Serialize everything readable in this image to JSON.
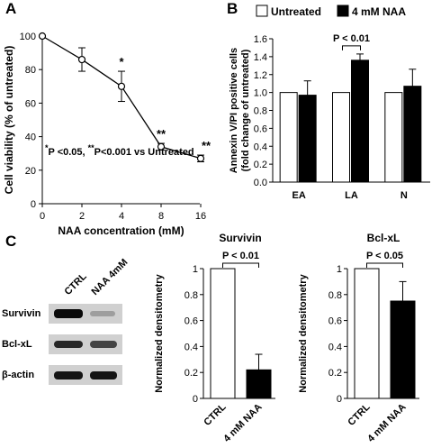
{
  "panels": {
    "a": "A",
    "b": "B",
    "c": "C"
  },
  "chart_data": [
    {
      "id": "A",
      "type": "line",
      "x": [
        0,
        2,
        4,
        8,
        16
      ],
      "y": [
        100,
        86,
        70,
        34,
        27
      ],
      "error": [
        0,
        7,
        9,
        2,
        2
      ],
      "xlabel": "NAA concentration (mM)",
      "ylabel": "Cell viability (% of untreated)",
      "xlim": [
        0,
        16
      ],
      "ylim": [
        0,
        100
      ],
      "xticks": [
        "0",
        "2",
        "4",
        "8",
        "16"
      ],
      "yticks": [
        "0",
        "20",
        "40",
        "60",
        "80",
        "100"
      ],
      "annotations": [
        "",
        "",
        "*",
        "**",
        "**"
      ],
      "footnote_star1": "*",
      "footnote_text1": "P <0.05,",
      "footnote_star2": "**",
      "footnote_text2": "P<0.001 vs Untreated"
    },
    {
      "id": "B",
      "type": "bar",
      "categories": [
        "EA",
        "LA",
        "N"
      ],
      "series": [
        {
          "name": "Untreated",
          "values": [
            1.0,
            1.0,
            1.0
          ],
          "error": [
            0,
            0,
            0
          ],
          "color": "#ffffff"
        },
        {
          "name": "4 mM NAA",
          "values": [
            0.97,
            1.36,
            1.07
          ],
          "error": [
            0.16,
            0.07,
            0.19
          ],
          "color": "#000000"
        }
      ],
      "ylabel_line1": "Annexin V/PI positive cells",
      "ylabel_line2": "(fold change of untreated)",
      "ylim": [
        0,
        1.6
      ],
      "yticks": [
        "0.0",
        "0.2",
        "0.4",
        "0.6",
        "0.8",
        "1.0",
        "1.2",
        "1.4",
        "1.6"
      ],
      "annotation": "P < 0.01"
    },
    {
      "id": "C-Survivin",
      "type": "bar",
      "title": "Survivin",
      "categories": [
        "CTRL",
        "4 mM NAA"
      ],
      "values": [
        1.0,
        0.22
      ],
      "error": [
        0,
        0.12
      ],
      "colors": [
        "#ffffff",
        "#000000"
      ],
      "ylabel": "Normalized densitometry",
      "ylim": [
        0,
        1
      ],
      "yticks": [
        "0",
        "0.2",
        "0.4",
        "0.6",
        "0.8",
        "1"
      ],
      "annotation": "P < 0.01"
    },
    {
      "id": "C-BclxL",
      "type": "bar",
      "title": "Bcl-xL",
      "categories": [
        "CTRL",
        "4 mM NAA"
      ],
      "values": [
        1.0,
        0.75
      ],
      "error": [
        0,
        0.15
      ],
      "colors": [
        "#ffffff",
        "#000000"
      ],
      "ylabel": "Normalized densitometry",
      "ylim": [
        0,
        1
      ],
      "yticks": [
        "0",
        "0.2",
        "0.4",
        "0.6",
        "0.8",
        "1"
      ],
      "annotation": "P < 0.05"
    }
  ],
  "blot": {
    "lanes": [
      "CTRL",
      "NAA 4mM"
    ],
    "rows": [
      {
        "label": "Survivin",
        "intensities": [
          1.0,
          0.22
        ]
      },
      {
        "label": "Bcl-xL",
        "intensities": [
          0.85,
          0.7
        ]
      },
      {
        "label": "β-actin",
        "intensities": [
          0.95,
          0.95
        ]
      }
    ]
  }
}
